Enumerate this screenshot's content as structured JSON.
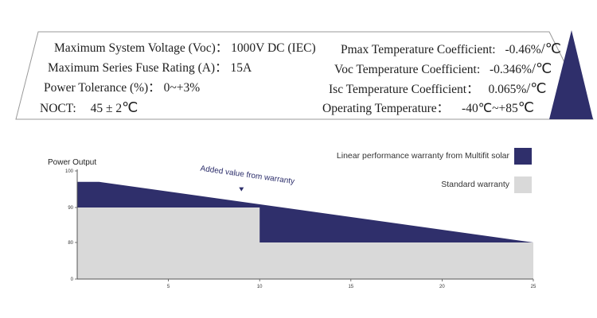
{
  "specs": {
    "left": [
      {
        "label": "Maximum System Voltage (Voc)：",
        "value": "1000V DC (IEC)"
      },
      {
        "label": "Maximum Series Fuse Rating (A)：",
        "value": "15A"
      },
      {
        "label": "Power Tolerance (%)：",
        "value": "0~+3%"
      },
      {
        "label": "NOCT:",
        "value": "45 ± 2",
        "unit": "℃"
      }
    ],
    "right": [
      {
        "label": "Pmax Temperature Coefficient:",
        "value": "-0.46%",
        "unit": "/℃"
      },
      {
        "label": "Voc Temperature Coefficient:",
        "value": "-0.346%",
        "unit": "/℃"
      },
      {
        "label": "Isc Temperature Coefficient：",
        "value": "0.065%",
        "unit": "/℃"
      },
      {
        "label": "Operating Temperature：",
        "value": "-40℃~+85",
        "unit": "℃"
      }
    ]
  },
  "colors": {
    "navy": "#2f2f6b",
    "gray": "#d9d9d9",
    "axis": "#555555"
  },
  "chart_data": {
    "type": "area",
    "ylabel": "Power Output",
    "xlim": [
      0,
      25
    ],
    "ylim": [
      0,
      100
    ],
    "x_ticks": [
      "5",
      "10",
      "15",
      "20",
      "25"
    ],
    "y_ticks": [
      "0",
      "80",
      "90",
      "100"
    ],
    "y_tick_values": [
      0,
      80,
      90,
      100
    ],
    "x_tick_values": [
      5,
      10,
      15,
      20,
      25
    ],
    "series": [
      {
        "name": "Linear performance warranty from Multifit solar",
        "color": "#2f2f6b",
        "points": [
          [
            0,
            97
          ],
          [
            1.2,
            97
          ],
          [
            25,
            80
          ]
        ]
      },
      {
        "name": "Standard warranty",
        "color": "#d9d9d9",
        "points": [
          [
            0,
            90
          ],
          [
            10,
            90
          ],
          [
            10,
            80
          ],
          [
            25,
            80
          ]
        ]
      }
    ],
    "annotation": {
      "text": "Added value from warranty",
      "x": 9,
      "y": 94
    },
    "legend_placement": "top-right"
  }
}
